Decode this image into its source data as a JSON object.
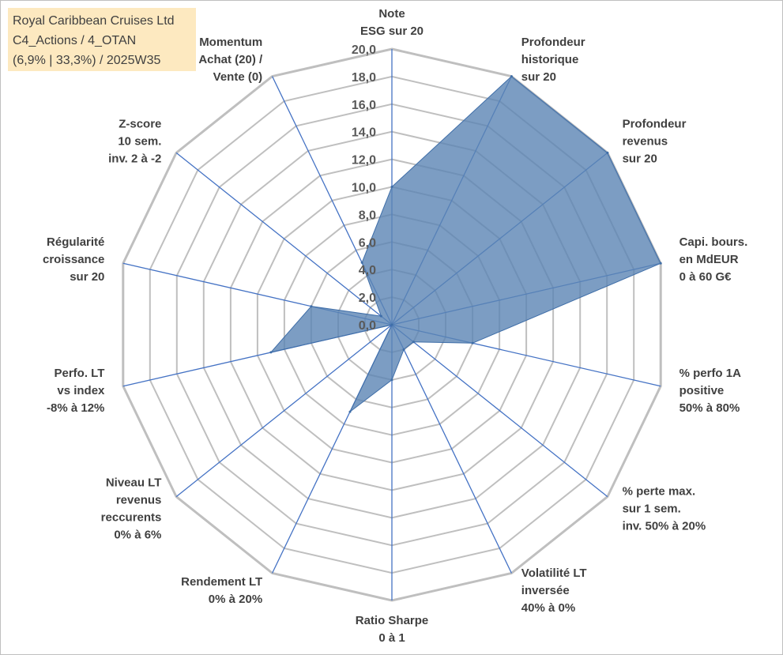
{
  "header": {
    "lines": [
      "Royal Caribbean Cruises Ltd",
      "C4_Actions / 4_OTAN",
      "(6,9% | 33,3%) / 2025W35"
    ]
  },
  "colors": {
    "fill": "#5b84b4",
    "stroke": "#3f6ea8",
    "axis": "#4472c4",
    "grid": "#bfbfbf"
  },
  "chart_data": {
    "type": "radar",
    "title": "",
    "rmin": 0,
    "rmax": 20,
    "tick_step": 2,
    "grid": true,
    "tick_labels": [
      "0,0",
      "2,0",
      "4,0",
      "6,0",
      "8,0",
      "10,0",
      "12,0",
      "14,0",
      "16,0",
      "18,0",
      "20,0"
    ],
    "axes": [
      {
        "label": [
          "Note",
          "ESG sur 20"
        ],
        "value": 10
      },
      {
        "label": [
          "Profondeur",
          "historique",
          "sur 20"
        ],
        "value": 20
      },
      {
        "label": [
          "Profondeur",
          "revenus",
          "sur 20"
        ],
        "value": 20
      },
      {
        "label": [
          "Capi. bours.",
          "en MdEUR",
          "0 à 60 G€"
        ],
        "value": 20
      },
      {
        "label": [
          "% perfo 1A",
          "positive",
          "50% à 80%"
        ],
        "value": 6
      },
      {
        "label": [
          "% perte max.",
          "sur 1 sem.",
          "inv. 50% à 20%"
        ],
        "value": 2
      },
      {
        "label": [
          "Volatilité LT",
          "inversée",
          "40% à 0%"
        ],
        "value": 2
      },
      {
        "label": [
          "Ratio Sharpe",
          "0 à 1"
        ],
        "value": 4
      },
      {
        "label": [
          "Rendement LT",
          "0% à 20%"
        ],
        "value": 7
      },
      {
        "label": [
          "Niveau LT",
          "revenus",
          "reccurents",
          "0% à 6%"
        ],
        "value": 0
      },
      {
        "label": [
          "Perfo. LT",
          "vs index",
          "-8% à 12%"
        ],
        "value": 9
      },
      {
        "label": [
          "Régularité",
          "croissance",
          "sur 20"
        ],
        "value": 6
      },
      {
        "label": [
          "Z-score",
          "10 sem.",
          "inv. 2 à -2"
        ],
        "value": 1
      },
      {
        "label": [
          "Momentum",
          "Achat (20) /",
          "Vente (0)"
        ],
        "value": 5
      }
    ]
  }
}
